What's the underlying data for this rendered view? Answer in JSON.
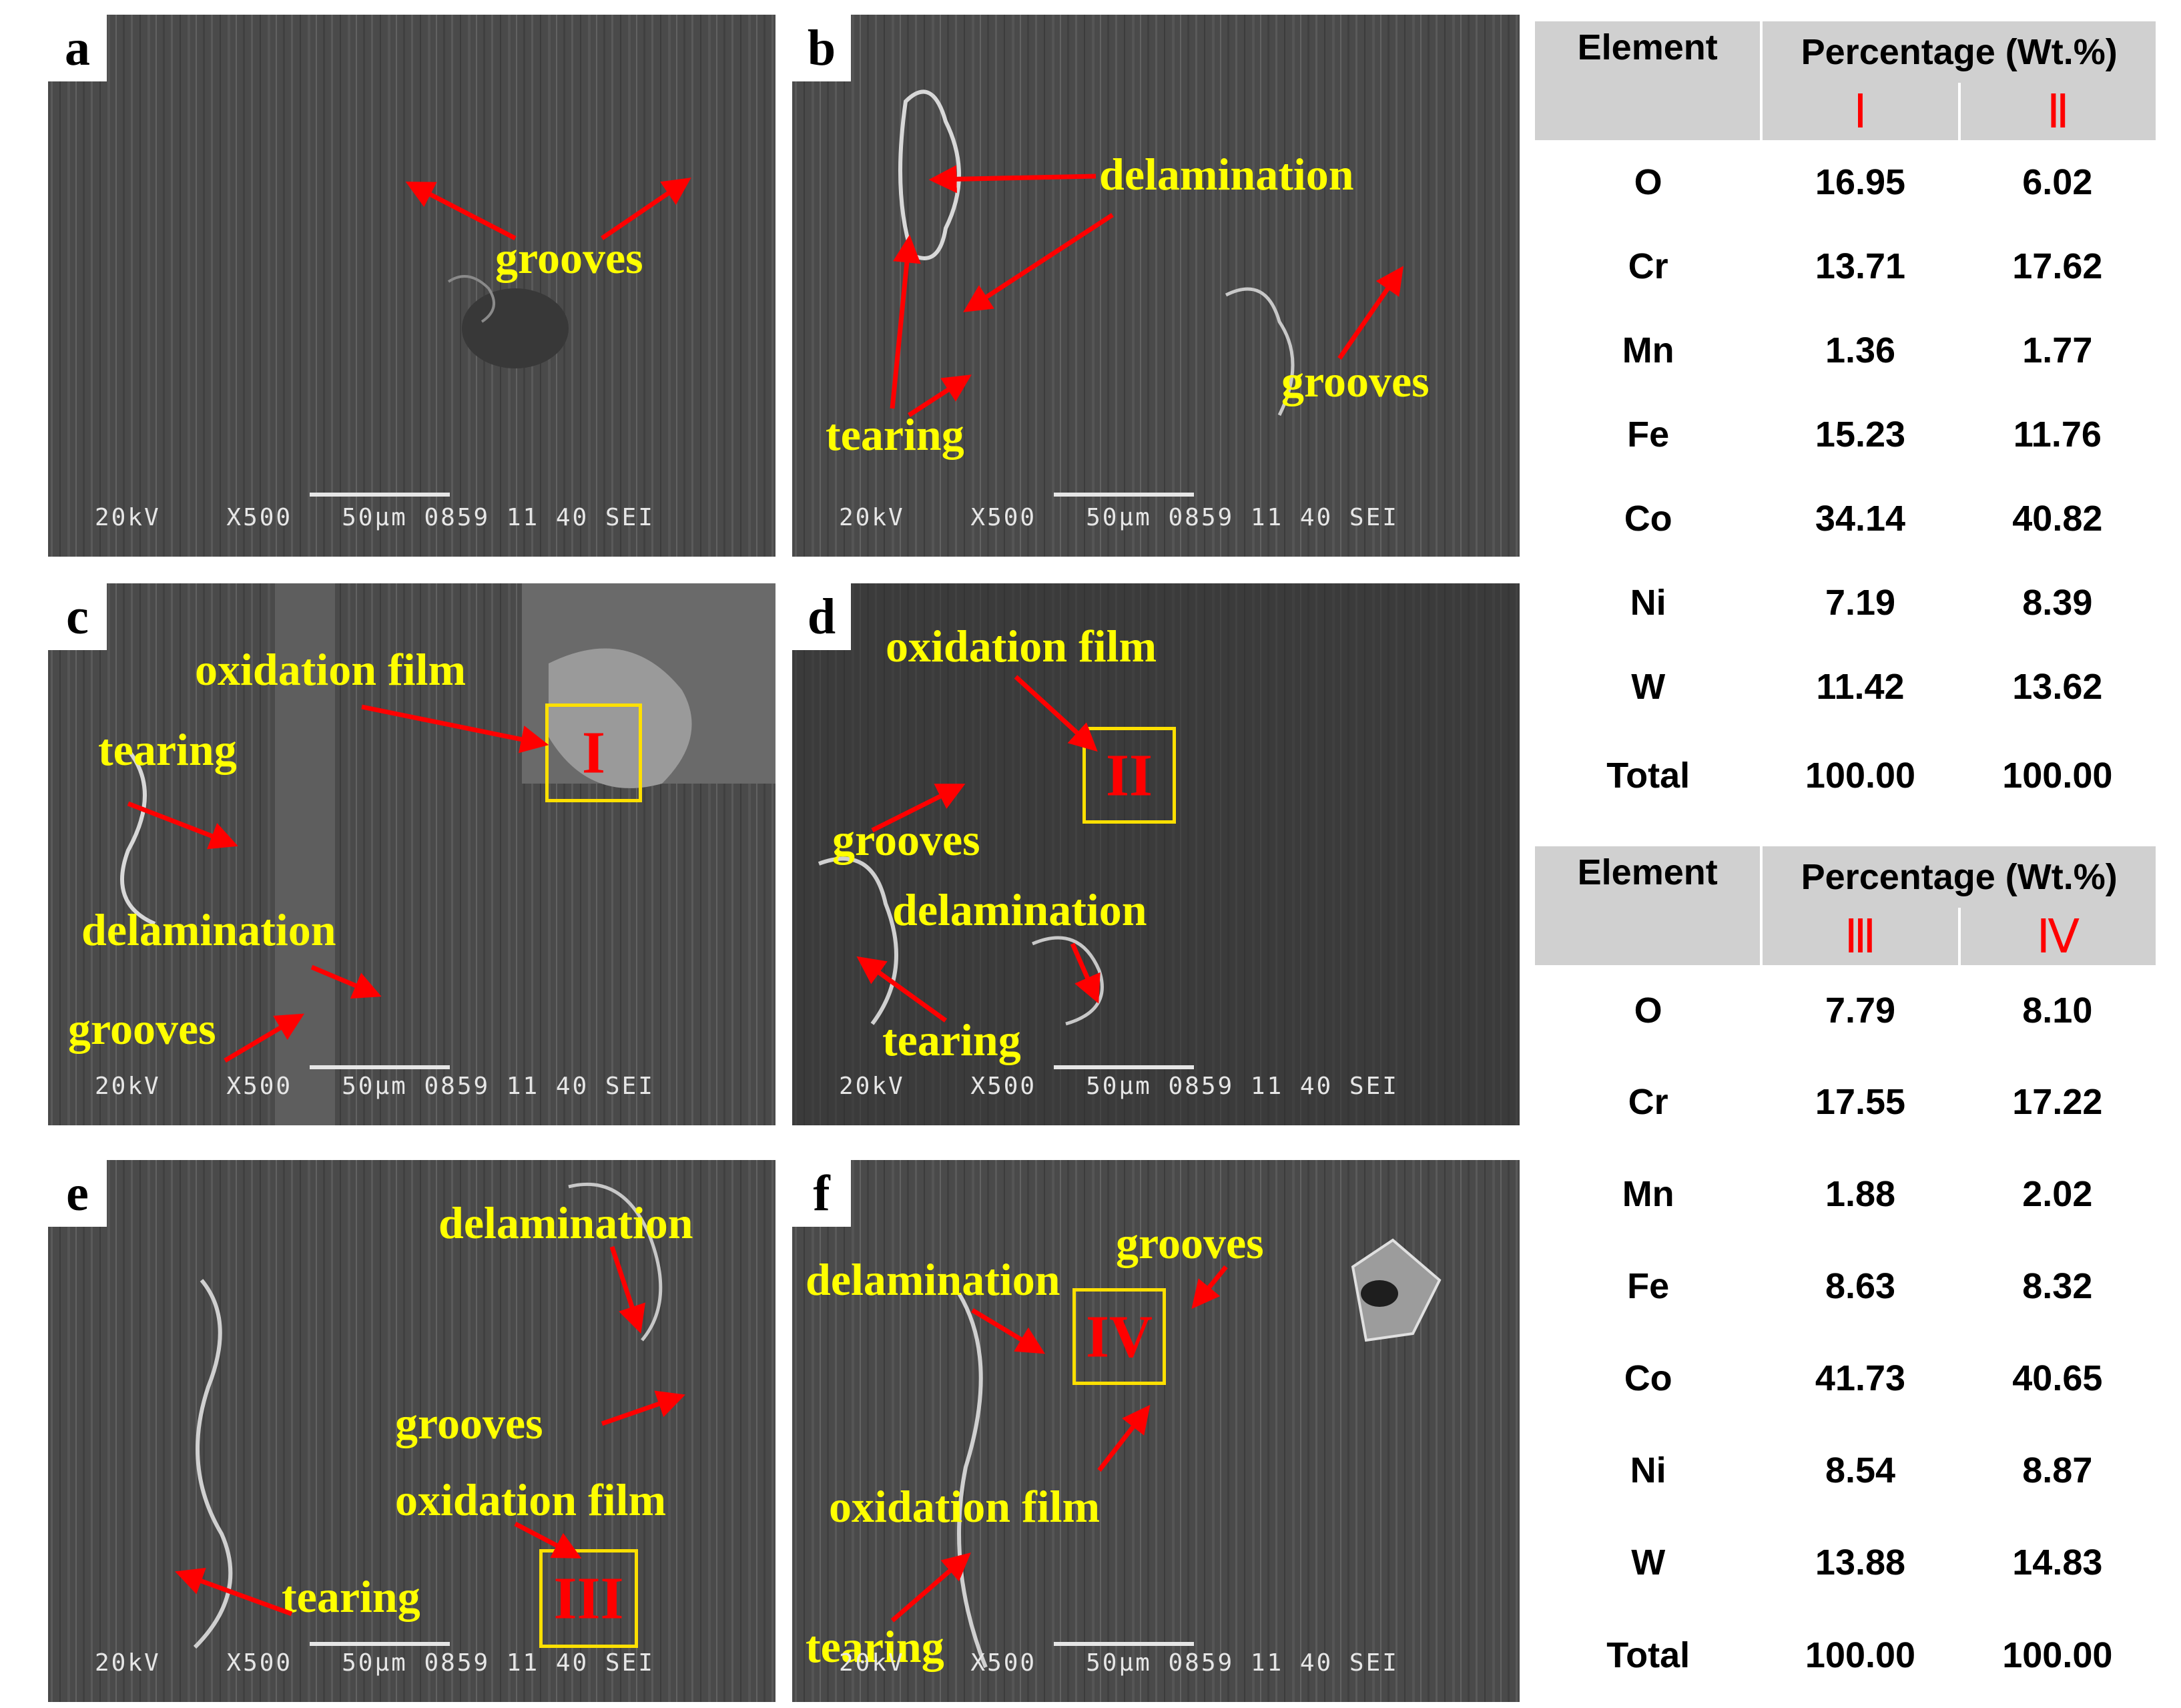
{
  "panels": [
    {
      "label": "a",
      "footer": "20kV    X500   50μm 0859 11 40 SEI",
      "annotations": [
        "grooves"
      ],
      "roman": ""
    },
    {
      "label": "b",
      "footer": "20kV    X500   50μm 0859 11 40 SEI",
      "annotations": [
        "delamination",
        "grooves",
        "tearing"
      ],
      "roman": ""
    },
    {
      "label": "c",
      "footer": "20kV    X500   50μm 0859 11 40 SEI",
      "annotations": [
        "oxidation  film",
        "tearing",
        "delamination",
        "grooves"
      ],
      "roman": "I"
    },
    {
      "label": "d",
      "footer": "20kV    X500   50μm 0859 11 40 SEI",
      "annotations": [
        "oxidation  film",
        "grooves",
        "delamination",
        "tearing"
      ],
      "roman": "II"
    },
    {
      "label": "e",
      "footer": "20kV    X500   50μm 0859 11 40 SEI",
      "annotations": [
        "delamination",
        "grooves",
        "oxidation  film",
        "tearing"
      ],
      "roman": "III"
    },
    {
      "label": "f",
      "footer": "20kV    X500   50μm 0859 11 40 SEI",
      "annotations": [
        "grooves",
        "delamination",
        "oxidation  film",
        "tearing"
      ],
      "roman": "IV"
    }
  ],
  "tables": [
    {
      "header_element": "Element",
      "header_percentage": "Percentage (Wt.%)",
      "columns": [
        "Ⅰ",
        "Ⅱ"
      ],
      "rows": [
        {
          "element": "O",
          "v1": "16.95",
          "v2": "6.02"
        },
        {
          "element": "Cr",
          "v1": "13.71",
          "v2": "17.62"
        },
        {
          "element": "Mn",
          "v1": "1.36",
          "v2": "1.77"
        },
        {
          "element": "Fe",
          "v1": "15.23",
          "v2": "11.76"
        },
        {
          "element": "Co",
          "v1": "34.14",
          "v2": "40.82"
        },
        {
          "element": "Ni",
          "v1": "7.19",
          "v2": "8.39"
        },
        {
          "element": "W",
          "v1": "11.42",
          "v2": "13.62"
        },
        {
          "element": "Total",
          "v1": "100.00",
          "v2": "100.00"
        }
      ]
    },
    {
      "header_element": "Element",
      "header_percentage": "Percentage (Wt.%)",
      "columns": [
        "Ⅲ",
        "Ⅳ"
      ],
      "rows": [
        {
          "element": "O",
          "v1": "7.79",
          "v2": "8.10"
        },
        {
          "element": "Cr",
          "v1": "17.55",
          "v2": "17.22"
        },
        {
          "element": "Mn",
          "v1": "1.88",
          "v2": "2.02"
        },
        {
          "element": "Fe",
          "v1": "8.63",
          "v2": "8.32"
        },
        {
          "element": "Co",
          "v1": "41.73",
          "v2": "40.65"
        },
        {
          "element": "Ni",
          "v1": "8.54",
          "v2": "8.87"
        },
        {
          "element": "W",
          "v1": "13.88",
          "v2": "14.83"
        },
        {
          "element": "Total",
          "v1": "100.00",
          "v2": "100.00"
        }
      ]
    }
  ],
  "colors": {
    "annotation": "#ffff00",
    "arrow": "#ff0000",
    "box": "#ffe000",
    "roman": "#ff0000",
    "table_header": "#d0d0d0"
  }
}
